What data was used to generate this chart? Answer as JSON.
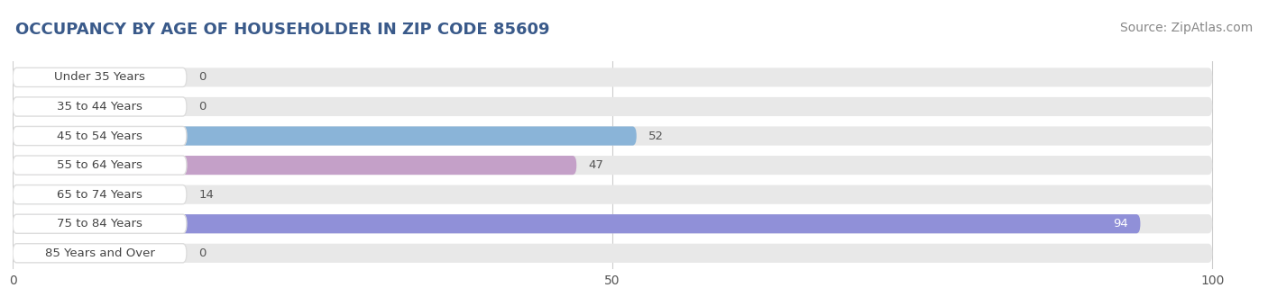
{
  "title": "OCCUPANCY BY AGE OF HOUSEHOLDER IN ZIP CODE 85609",
  "source": "Source: ZipAtlas.com",
  "categories": [
    "Under 35 Years",
    "35 to 44 Years",
    "45 to 54 Years",
    "55 to 64 Years",
    "65 to 74 Years",
    "75 to 84 Years",
    "85 Years and Over"
  ],
  "values": [
    0,
    0,
    52,
    47,
    14,
    94,
    0
  ],
  "bar_colors": [
    "#f5c9a0",
    "#f5a0a8",
    "#8ab4d8",
    "#c4a0c8",
    "#7ecece",
    "#9090d8",
    "#f5b0c0"
  ],
  "bar_bg_color": "#e8e8e8",
  "label_pill_color": "#ffffff",
  "xlim": [
    0,
    100
  ],
  "label_inside_threshold": 88,
  "label_color_inside": "#ffffff",
  "label_color_outside": "#555555",
  "title_fontsize": 13,
  "source_fontsize": 10,
  "tick_fontsize": 10,
  "bar_height": 0.65,
  "title_color": "#3a5a8a",
  "source_color": "#888888"
}
